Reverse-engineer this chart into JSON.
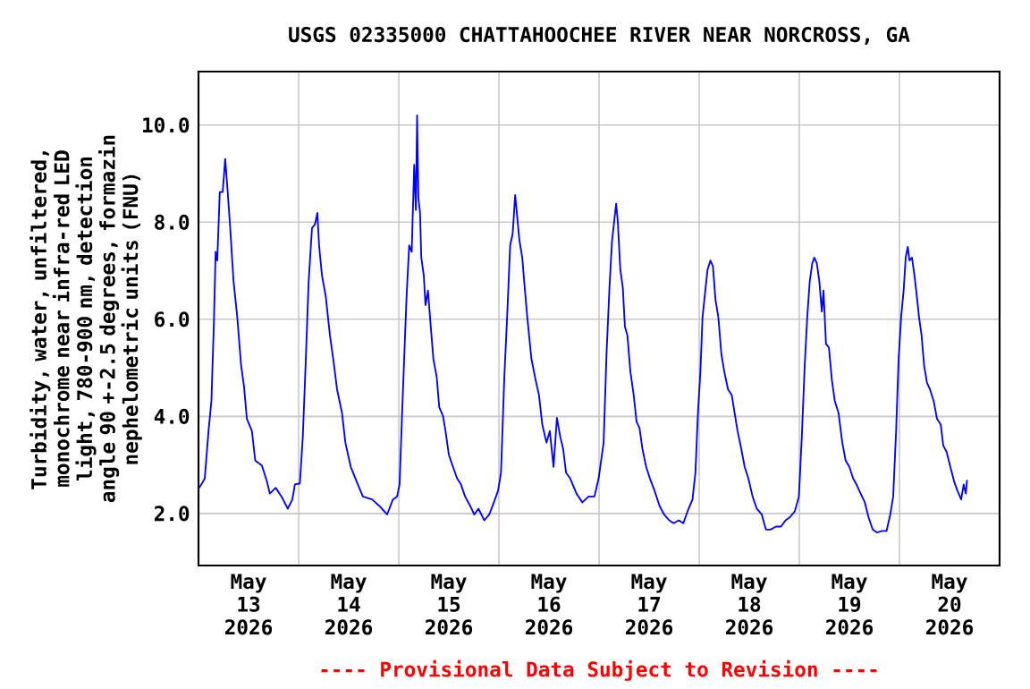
{
  "chart_data": {
    "type": "line",
    "title": "USGS 02335000 CHATTAHOOCHEE RIVER NEAR NORCROSS, GA",
    "ylabel": "Turbidity, water, unfiltered, monochrome near infra-red LED light, 780-900 nm, detection angle 90 +-2.5 degrees, formazin nephelometric units (FNU)",
    "annotations": [
      "---- Provisional Data Subject to Revision ----"
    ],
    "color": "#0000ff",
    "x": [
      "2026-05-13T00:12",
      "2026-05-13T01:30",
      "2026-05-13T02:24",
      "2026-05-13T03:06",
      "2026-05-13T03:42",
      "2026-05-13T04:06",
      "2026-05-13T04:30",
      "2026-05-13T05:06",
      "2026-05-13T05:48",
      "2026-05-13T06:24",
      "2026-05-13T07:00",
      "2026-05-13T07:36",
      "2026-05-13T08:24",
      "2026-05-13T09:18",
      "2026-05-13T10:12",
      "2026-05-13T10:54",
      "2026-05-13T11:36",
      "2026-05-13T12:48",
      "2026-05-13T13:36",
      "2026-05-13T15:12",
      "2026-05-13T16:24",
      "2026-05-13T17:06",
      "2026-05-13T18:30",
      "2026-05-13T19:54",
      "2026-05-13T21:24",
      "2026-05-13T22:30",
      "2026-05-13T23:06",
      "2026-05-14T00:18",
      "2026-05-14T01:00",
      "2026-05-14T01:42",
      "2026-05-14T02:24",
      "2026-05-14T03:12",
      "2026-05-14T03:54",
      "2026-05-14T04:30",
      "2026-05-14T04:54",
      "2026-05-14T05:36",
      "2026-05-14T06:30",
      "2026-05-14T07:30",
      "2026-05-14T08:18",
      "2026-05-14T09:12",
      "2026-05-14T10:24",
      "2026-05-14T11:12",
      "2026-05-14T12:30",
      "2026-05-14T13:54",
      "2026-05-14T15:24",
      "2026-05-14T17:36",
      "2026-05-14T19:18",
      "2026-05-14T21:12",
      "2026-05-14T22:36",
      "2026-05-14T23:36",
      "2026-05-15T00:12",
      "2026-05-15T00:48",
      "2026-05-15T01:24",
      "2026-05-15T01:54",
      "2026-05-15T02:30",
      "2026-05-15T03:06",
      "2026-05-15T03:42",
      "2026-05-15T04:06",
      "2026-05-15T04:24",
      "2026-05-15T04:42",
      "2026-05-15T05:06",
      "2026-05-15T05:24",
      "2026-05-15T06:00",
      "2026-05-15T06:24",
      "2026-05-15T07:00",
      "2026-05-15T07:36",
      "2026-05-15T08:18",
      "2026-05-15T09:06",
      "2026-05-15T09:42",
      "2026-05-15T10:36",
      "2026-05-15T11:12",
      "2026-05-15T12:00",
      "2026-05-15T13:00",
      "2026-05-15T14:00",
      "2026-05-15T14:54",
      "2026-05-15T15:54",
      "2026-05-15T17:06",
      "2026-05-15T18:06",
      "2026-05-15T19:06",
      "2026-05-15T20:30",
      "2026-05-15T21:42",
      "2026-05-15T22:48",
      "2026-05-15T23:48",
      "2026-05-16T00:30",
      "2026-05-16T01:18",
      "2026-05-16T02:00",
      "2026-05-16T02:42",
      "2026-05-16T03:18",
      "2026-05-16T03:54",
      "2026-05-16T04:18",
      "2026-05-16T04:54",
      "2026-05-16T05:36",
      "2026-05-16T06:00",
      "2026-05-16T06:48",
      "2026-05-16T07:48",
      "2026-05-16T08:48",
      "2026-05-16T09:36",
      "2026-05-16T10:24",
      "2026-05-16T11:24",
      "2026-05-16T12:12",
      "2026-05-16T13:06",
      "2026-05-16T13:54",
      "2026-05-16T14:42",
      "2026-05-16T15:24",
      "2026-05-16T16:06",
      "2026-05-16T17:06",
      "2026-05-16T18:36",
      "2026-05-16T20:00",
      "2026-05-16T21:30",
      "2026-05-16T22:54",
      "2026-05-16T23:54",
      "2026-05-17T01:06",
      "2026-05-17T01:48",
      "2026-05-17T02:30",
      "2026-05-17T03:06",
      "2026-05-17T03:42",
      "2026-05-17T04:06",
      "2026-05-17T04:30",
      "2026-05-17T05:06",
      "2026-05-17T05:42",
      "2026-05-17T06:12",
      "2026-05-17T06:48",
      "2026-05-17T07:30",
      "2026-05-17T08:18",
      "2026-05-17T09:00",
      "2026-05-17T09:42",
      "2026-05-17T10:24",
      "2026-05-17T11:18",
      "2026-05-17T12:12",
      "2026-05-17T13:18",
      "2026-05-17T14:30",
      "2026-05-17T15:36",
      "2026-05-17T16:48",
      "2026-05-17T17:54",
      "2026-05-17T19:06",
      "2026-05-17T20:12",
      "2026-05-17T21:12",
      "2026-05-17T22:24",
      "2026-05-17T23:06",
      "2026-05-17T23:42",
      "2026-05-18T00:18",
      "2026-05-18T00:48",
      "2026-05-18T01:24",
      "2026-05-18T02:00",
      "2026-05-18T02:42",
      "2026-05-18T03:18",
      "2026-05-18T03:54",
      "2026-05-18T04:36",
      "2026-05-18T05:18",
      "2026-05-18T06:00",
      "2026-05-18T06:54",
      "2026-05-18T07:48",
      "2026-05-18T08:30",
      "2026-05-18T09:12",
      "2026-05-18T10:06",
      "2026-05-18T10:54",
      "2026-05-18T11:48",
      "2026-05-18T12:48",
      "2026-05-18T13:48",
      "2026-05-18T15:00",
      "2026-05-18T16:00",
      "2026-05-18T17:06",
      "2026-05-18T18:24",
      "2026-05-18T19:36",
      "2026-05-18T20:42",
      "2026-05-18T21:42",
      "2026-05-18T22:54",
      "2026-05-18T23:54",
      "2026-05-19T00:36",
      "2026-05-19T01:18",
      "2026-05-19T01:54",
      "2026-05-19T02:30",
      "2026-05-19T03:06",
      "2026-05-19T03:36",
      "2026-05-19T04:12",
      "2026-05-19T04:48",
      "2026-05-19T05:24",
      "2026-05-19T05:48",
      "2026-05-19T06:24",
      "2026-05-19T07:06",
      "2026-05-19T07:48",
      "2026-05-19T08:30",
      "2026-05-19T09:24",
      "2026-05-19T10:18",
      "2026-05-19T11:06",
      "2026-05-19T12:00",
      "2026-05-19T12:54",
      "2026-05-19T13:42",
      "2026-05-19T14:42",
      "2026-05-19T15:42",
      "2026-05-19T16:36",
      "2026-05-19T17:36",
      "2026-05-19T18:36",
      "2026-05-19T19:48",
      "2026-05-19T20:54",
      "2026-05-19T21:48",
      "2026-05-19T22:30",
      "2026-05-19T23:12",
      "2026-05-19T23:48",
      "2026-05-20T00:24",
      "2026-05-20T01:00",
      "2026-05-20T01:30",
      "2026-05-20T02:00",
      "2026-05-20T02:24",
      "2026-05-20T03:00",
      "2026-05-20T03:36",
      "2026-05-20T04:06",
      "2026-05-20T04:42",
      "2026-05-20T05:18",
      "2026-05-20T05:54",
      "2026-05-20T06:36",
      "2026-05-20T07:18",
      "2026-05-20T08:12",
      "2026-05-20T09:00",
      "2026-05-20T09:54",
      "2026-05-20T10:30",
      "2026-05-20T11:18",
      "2026-05-20T12:12",
      "2026-05-20T13:06",
      "2026-05-20T13:54",
      "2026-05-20T14:48",
      "2026-05-20T15:24",
      "2026-05-20T15:54",
      "2026-05-20T16:12"
    ],
    "values": [
      2.53,
      2.72,
      3.7,
      4.32,
      5.95,
      7.39,
      7.21,
      8.62,
      8.62,
      9.3,
      8.62,
      7.88,
      6.78,
      6.04,
      5.06,
      4.62,
      3.95,
      3.7,
      3.09,
      2.99,
      2.66,
      2.41,
      2.53,
      2.35,
      2.1,
      2.29,
      2.6,
      2.62,
      3.58,
      5.12,
      6.78,
      7.88,
      7.95,
      8.19,
      7.52,
      6.9,
      6.47,
      5.67,
      5.18,
      4.56,
      4.07,
      3.46,
      2.96,
      2.66,
      2.35,
      2.29,
      2.16,
      1.98,
      2.29,
      2.35,
      2.6,
      4.07,
      5.42,
      6.53,
      7.52,
      7.39,
      9.18,
      8.25,
      10.2,
      8.5,
      8.19,
      7.27,
      6.9,
      6.29,
      6.59,
      5.92,
      5.18,
      4.81,
      4.19,
      4.01,
      3.7,
      3.21,
      2.96,
      2.72,
      2.6,
      2.35,
      2.16,
      1.98,
      2.1,
      1.86,
      1.98,
      2.23,
      2.47,
      2.84,
      4.81,
      6.1,
      7.52,
      7.76,
      8.56,
      8.19,
      7.64,
      7.27,
      6.84,
      6.04,
      5.18,
      4.75,
      4.44,
      3.83,
      3.46,
      3.7,
      2.96,
      3.97,
      3.58,
      3.33,
      2.84,
      2.72,
      2.41,
      2.23,
      2.35,
      2.35,
      2.72,
      3.46,
      5.3,
      6.65,
      7.6,
      8.07,
      8.38,
      8.01,
      7.02,
      6.65,
      5.85,
      5.67,
      4.93,
      4.44,
      3.89,
      3.76,
      3.33,
      2.96,
      2.72,
      2.47,
      2.16,
      1.98,
      1.86,
      1.8,
      1.86,
      1.8,
      2.04,
      2.29,
      2.84,
      4.07,
      4.93,
      6.04,
      6.53,
      7.02,
      7.21,
      7.09,
      6.41,
      6.04,
      5.3,
      4.93,
      4.56,
      4.44,
      4.07,
      3.7,
      3.33,
      2.96,
      2.72,
      2.35,
      2.1,
      1.98,
      1.67,
      1.67,
      1.73,
      1.73,
      1.86,
      1.92,
      2.04,
      2.35,
      3.58,
      5.06,
      6.04,
      6.78,
      7.15,
      7.27,
      7.15,
      6.78,
      6.16,
      6.59,
      5.49,
      5.42,
      4.75,
      4.32,
      4.07,
      3.46,
      3.09,
      2.96,
      2.72,
      2.6,
      2.41,
      2.23,
      1.92,
      1.67,
      1.61,
      1.64,
      1.64,
      1.98,
      2.35,
      3.7,
      5.18,
      6.04,
      6.59,
      7.27,
      7.49,
      7.21,
      7.27,
      6.9,
      6.53,
      6.04,
      5.67,
      5.06,
      4.69,
      4.56,
      4.32,
      3.95,
      3.83,
      3.4,
      3.27,
      2.96,
      2.66,
      2.47,
      2.29,
      2.6,
      2.41,
      2.69
    ],
    "xlim": [
      "2026-05-13T00:00",
      "2026-05-21T00:00"
    ],
    "xticks": [
      {
        "value": "2026-05-13T12:00",
        "label": "May 13 2026"
      },
      {
        "value": "2026-05-14T00:00",
        "label": null
      },
      {
        "value": "2026-05-14T12:00",
        "label": "May 14 2026"
      },
      {
        "value": "2026-05-15T00:00",
        "label": null
      },
      {
        "value": "2026-05-15T12:00",
        "label": "May 15 2026"
      },
      {
        "value": "2026-05-16T00:00",
        "label": null
      },
      {
        "value": "2026-05-16T12:00",
        "label": "May 16 2026"
      },
      {
        "value": "2026-05-17T00:00",
        "label": null
      },
      {
        "value": "2026-05-17T12:00",
        "label": "May 17 2026"
      },
      {
        "value": "2026-05-18T00:00",
        "label": null
      },
      {
        "value": "2026-05-18T12:00",
        "label": "May 18 2026"
      },
      {
        "value": "2026-05-19T00:00",
        "label": null
      },
      {
        "value": "2026-05-19T12:00",
        "label": "May 19 2026"
      },
      {
        "value": "2026-05-20T00:00",
        "label": null
      },
      {
        "value": "2026-05-20T12:00",
        "label": "May 20 2026"
      }
    ],
    "ylim": [
      0.93,
      11.1
    ],
    "yticks": [
      {
        "value": 2,
        "label": "2.0"
      },
      {
        "value": 4,
        "label": "4.0"
      },
      {
        "value": 6,
        "label": "6.0"
      },
      {
        "value": 8,
        "label": "8.0"
      },
      {
        "value": 10,
        "label": "10.0"
      }
    ],
    "grid": true
  }
}
